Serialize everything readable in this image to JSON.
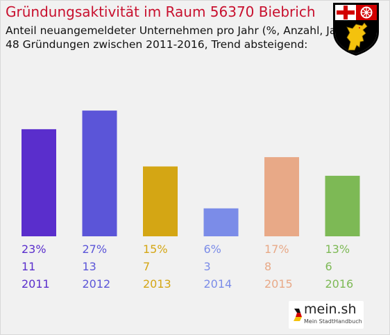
{
  "header": {
    "title": "Gründungsaktivität im Raum 56370 Biebrich",
    "subtitle_line1": "Anteil neuangemeldeter Unternehmen pro Jahr (%, Anzahl, Jahr)",
    "subtitle_line2": "48 Gründungen zwischen 2011-2016, Trend absteigend:"
  },
  "coat_of_arms": {
    "icon": "rhineland-palatinate-coat-of-arms-icon"
  },
  "colors": {
    "title": "#c8102e",
    "background": "#f1f1f1"
  },
  "chart_data": {
    "type": "bar",
    "categories": [
      "2011",
      "2012",
      "2013",
      "2014",
      "2015",
      "2016"
    ],
    "values": [
      23,
      27,
      15,
      6,
      17,
      13
    ],
    "counts": [
      11,
      13,
      7,
      3,
      8,
      6
    ],
    "value_labels": [
      "23%",
      "27%",
      "15%",
      "6%",
      "17%",
      "13%"
    ],
    "count_labels": [
      "11",
      "13",
      "7",
      "3",
      "8",
      "6"
    ],
    "colors": [
      "#5a2ecc",
      "#5b55d8",
      "#d4a614",
      "#7b8ce8",
      "#e8a987",
      "#7db955"
    ],
    "ylim": [
      0,
      30
    ],
    "grid": false,
    "legend": "none"
  },
  "brand": {
    "logo_text": "mein.sh",
    "tagline": "Mein StadtHandbuch",
    "icon": "germany-flag-icon"
  }
}
